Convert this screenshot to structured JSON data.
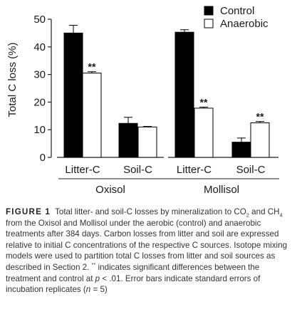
{
  "chart_data": {
    "type": "bar",
    "ylabel": "Total C loss (%)",
    "ylim": [
      0,
      50
    ],
    "yticks": [
      0,
      10,
      20,
      30,
      40,
      50
    ],
    "legend": {
      "placement": "top-right",
      "entries": [
        {
          "name": "Control",
          "color": "#000000"
        },
        {
          "name": "Anaerobic",
          "color": "#ffffff"
        }
      ]
    },
    "panels": [
      {
        "name": "Oxisol",
        "categories": [
          "Litter-C",
          "Soil-C"
        ],
        "series": [
          {
            "name": "Control",
            "values": [
              45.0,
              12.3
            ],
            "errors": [
              2.8,
              2.2
            ]
          },
          {
            "name": "Anaerobic",
            "values": [
              30.5,
              11.0
            ],
            "errors": [
              0.5,
              0.2
            ]
          }
        ],
        "annotations": [
          {
            "category": "Litter-C",
            "series": "Anaerobic",
            "text": "**"
          }
        ]
      },
      {
        "name": "Mollisol",
        "categories": [
          "Litter-C",
          "Soil-C"
        ],
        "series": [
          {
            "name": "Control",
            "values": [
              45.3,
              5.5
            ],
            "errors": [
              0.9,
              1.5
            ]
          },
          {
            "name": "Anaerobic",
            "values": [
              17.8,
              12.5
            ],
            "errors": [
              0.4,
              0.5
            ]
          }
        ],
        "annotations": [
          {
            "category": "Litter-C",
            "series": "Anaerobic",
            "text": "**"
          },
          {
            "category": "Soil-C",
            "series": "Anaerobic",
            "text": "**"
          }
        ]
      }
    ]
  },
  "caption": {
    "label": "FIGURE 1",
    "t1": "Total litter- and soil-C losses by mineralization to CO",
    "s1": "2",
    "t2": " and CH",
    "s2": "4",
    "t3": " from the Oxisol and Mollisol under the aerobic (control) and anaerobic treatments after 384 days. Carbon losses from litter and soil are expressed relative to initial C concentrations of the respective C sources. Isotope mixing models were used to partition total C losses from litter and soil sources as described in Section 2. ",
    "sup": "**",
    "t4": " indicates significant differences between the treatment and control at ",
    "p": "p",
    "t5": " < .01. Error bars indicate standard errors of incubation replicates (",
    "n": "n",
    "t6": " = 5)"
  }
}
